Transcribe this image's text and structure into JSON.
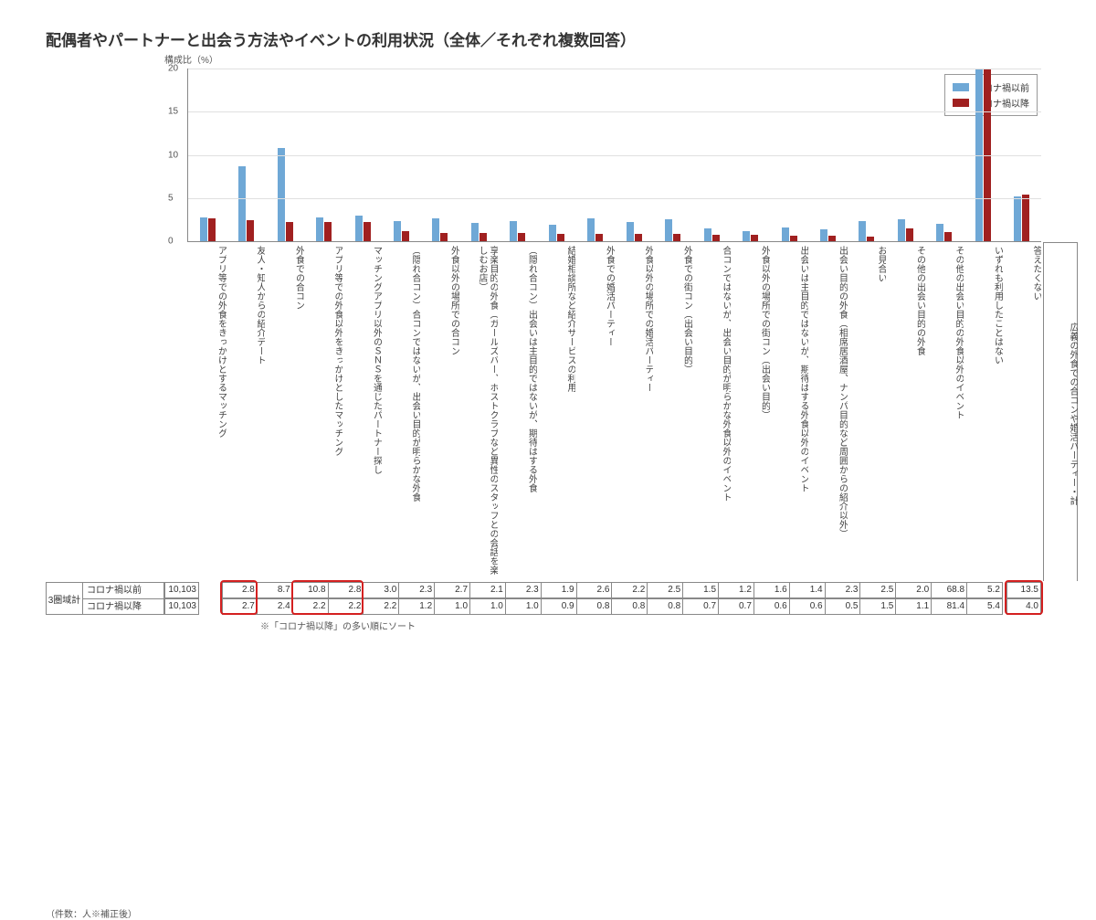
{
  "title": "配偶者やパートナーと出会う方法やイベントの利用状況（全体／それぞれ複数回答）",
  "ylabel": "構成比（%）",
  "footnote_left": "（件数：人※補正後）",
  "sort_note": "※「コロナ禍以降」の多い順にソート",
  "legend": {
    "before": "コロナ禍以前",
    "after": "コロナ禍以降"
  },
  "colors": {
    "before": "#6fa8d6",
    "after": "#a02020",
    "grid": "#e0e0e0",
    "border": "#888888",
    "highlight": "#d42020"
  },
  "y_axis": {
    "min": 0,
    "max": 20,
    "step": 5
  },
  "row_group_label": "3圏域計",
  "row_labels": {
    "before": "コロナ禍以前",
    "after": "コロナ禍以降"
  },
  "n_values": {
    "before": "10,103",
    "after": "10,103"
  },
  "categories": [
    {
      "label": "アプリ等での外食をきっかけとするマッチング",
      "before": 2.8,
      "after": 2.7,
      "hl": true
    },
    {
      "label": "友人・知人からの紹介デート",
      "before": 8.7,
      "after": 2.4
    },
    {
      "label": "外食での合コン",
      "before": 10.8,
      "after": 2.2,
      "hl": true
    },
    {
      "label": "アプリ等での外食以外をきっかけとしたマッチング",
      "before": 2.8,
      "after": 2.2,
      "hl": true
    },
    {
      "label": "マッチングアプリ以外のＳＮＳを通じたパートナー探し",
      "before": 3.0,
      "after": 2.2
    },
    {
      "label": "（隠れ合コン）合コンではないが、出会い目的が明らかな外食",
      "before": 2.3,
      "after": 1.2
    },
    {
      "label": "外食以外の場所での合コン",
      "before": 2.7,
      "after": 1.0
    },
    {
      "label": "享楽目的の外食（ガールズバー、ホストクラブなど異性のスタッフとの会話を楽しむお店）",
      "before": 2.1,
      "after": 1.0
    },
    {
      "label": "（隠れ合コン）出会いは主目的ではないが、期待はする外食",
      "before": 2.3,
      "after": 1.0
    },
    {
      "label": "結婚相談所など紹介サービスの利用",
      "before": 1.9,
      "after": 0.9
    },
    {
      "label": "外食での婚活パーティー",
      "before": 2.6,
      "after": 0.8
    },
    {
      "label": "外食以外の場所での婚活パーティー",
      "before": 2.2,
      "after": 0.8
    },
    {
      "label": "外食での街コン（出会い目的）",
      "before": 2.5,
      "after": 0.8
    },
    {
      "label": "合コンではないが、出会い目的が明らかな外食以外のイベント",
      "before": 1.5,
      "after": 0.7
    },
    {
      "label": "外食以外の場所での街コン（出会い目的）",
      "before": 1.2,
      "after": 0.7
    },
    {
      "label": "出会いは主目的ではないが、期待はする外食以外のイベント",
      "before": 1.6,
      "after": 0.6
    },
    {
      "label": "出会い目的の外食（相席居酒屋、ナンパ目的など周囲からの紹介以外）",
      "before": 1.4,
      "after": 0.6
    },
    {
      "label": "お見合い",
      "before": 2.3,
      "after": 0.5
    },
    {
      "label": "その他の出会い目的の外食",
      "before": 2.5,
      "after": 1.5
    },
    {
      "label": "その他の出会い目的の外食以外のイベント",
      "before": 2.0,
      "after": 1.1
    },
    {
      "label": "いずれも利用したことはない",
      "before": 68.8,
      "after": 81.4
    },
    {
      "label": "答えたくない",
      "before": 5.2,
      "after": 5.4
    }
  ],
  "extra_col": {
    "label": "広義の外食での合コンや婚活パーティー・計",
    "before": 13.5,
    "after": 4.0,
    "hl": true
  }
}
